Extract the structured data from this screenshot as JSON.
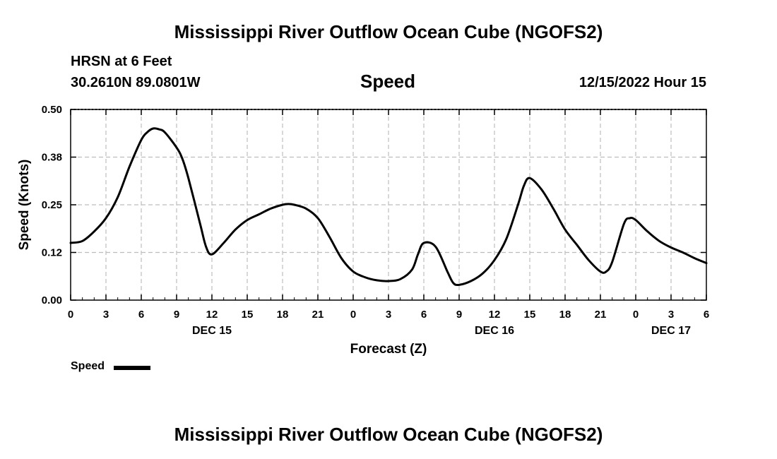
{
  "page": {
    "title": "Mississippi River Outflow Ocean Cube (NGOFS2)",
    "bottom_title": "Mississippi River Outflow Ocean Cube (NGOFS2)"
  },
  "header": {
    "station": "HRSN at 6 Feet",
    "coords": "30.2610N  89.0801W",
    "variable": "Speed",
    "datetime": "12/15/2022 Hour 15"
  },
  "chart_data": {
    "type": "line",
    "xlabel": "Forecast (Z)",
    "ylabel": "Speed (Knots)",
    "ylim": [
      0,
      0.5
    ],
    "xlim": [
      0,
      54
    ],
    "grid": true,
    "legend_placement": "bottom-left",
    "y_ticks": [
      "0.00",
      "0.12",
      "0.25",
      "0.38",
      "0.50"
    ],
    "x_ticks": [
      "0",
      "3",
      "6",
      "9",
      "12",
      "15",
      "18",
      "21",
      "0",
      "3",
      "6",
      "9",
      "12",
      "15",
      "18",
      "21",
      "0",
      "3",
      "6"
    ],
    "day_labels": [
      {
        "label": "DEC 15",
        "x": 12
      },
      {
        "label": "DEC 16",
        "x": 36
      },
      {
        "label": "DEC 17",
        "x": 51
      }
    ],
    "series": [
      {
        "name": "Speed",
        "color": "#000000",
        "x": [
          0,
          1,
          2,
          3,
          4,
          5,
          6,
          6.5,
          7,
          7.5,
          8,
          9,
          9.5,
          10,
          11,
          11.5,
          12,
          13,
          14,
          15,
          16,
          17,
          18,
          18.5,
          19,
          20,
          21,
          22,
          23,
          24,
          25,
          26,
          27,
          28,
          29,
          29.5,
          30,
          31,
          32,
          32.5,
          33,
          34,
          35,
          36,
          37,
          38,
          38.5,
          39,
          40,
          41,
          42,
          43,
          44,
          45,
          45.5,
          46,
          47,
          47.5,
          48,
          49,
          50,
          51,
          52,
          53,
          54
        ],
        "y": [
          0.15,
          0.155,
          0.18,
          0.215,
          0.27,
          0.35,
          0.42,
          0.44,
          0.45,
          0.448,
          0.44,
          0.4,
          0.37,
          0.32,
          0.2,
          0.14,
          0.12,
          0.15,
          0.185,
          0.21,
          0.225,
          0.24,
          0.25,
          0.252,
          0.25,
          0.24,
          0.215,
          0.165,
          0.11,
          0.075,
          0.06,
          0.052,
          0.05,
          0.055,
          0.08,
          0.12,
          0.15,
          0.14,
          0.075,
          0.045,
          0.04,
          0.05,
          0.07,
          0.105,
          0.16,
          0.25,
          0.3,
          0.32,
          0.29,
          0.24,
          0.185,
          0.145,
          0.105,
          0.075,
          0.075,
          0.1,
          0.2,
          0.215,
          0.21,
          0.18,
          0.155,
          0.138,
          0.125,
          0.11,
          0.097
        ]
      }
    ]
  },
  "legend": {
    "label": "Speed"
  }
}
